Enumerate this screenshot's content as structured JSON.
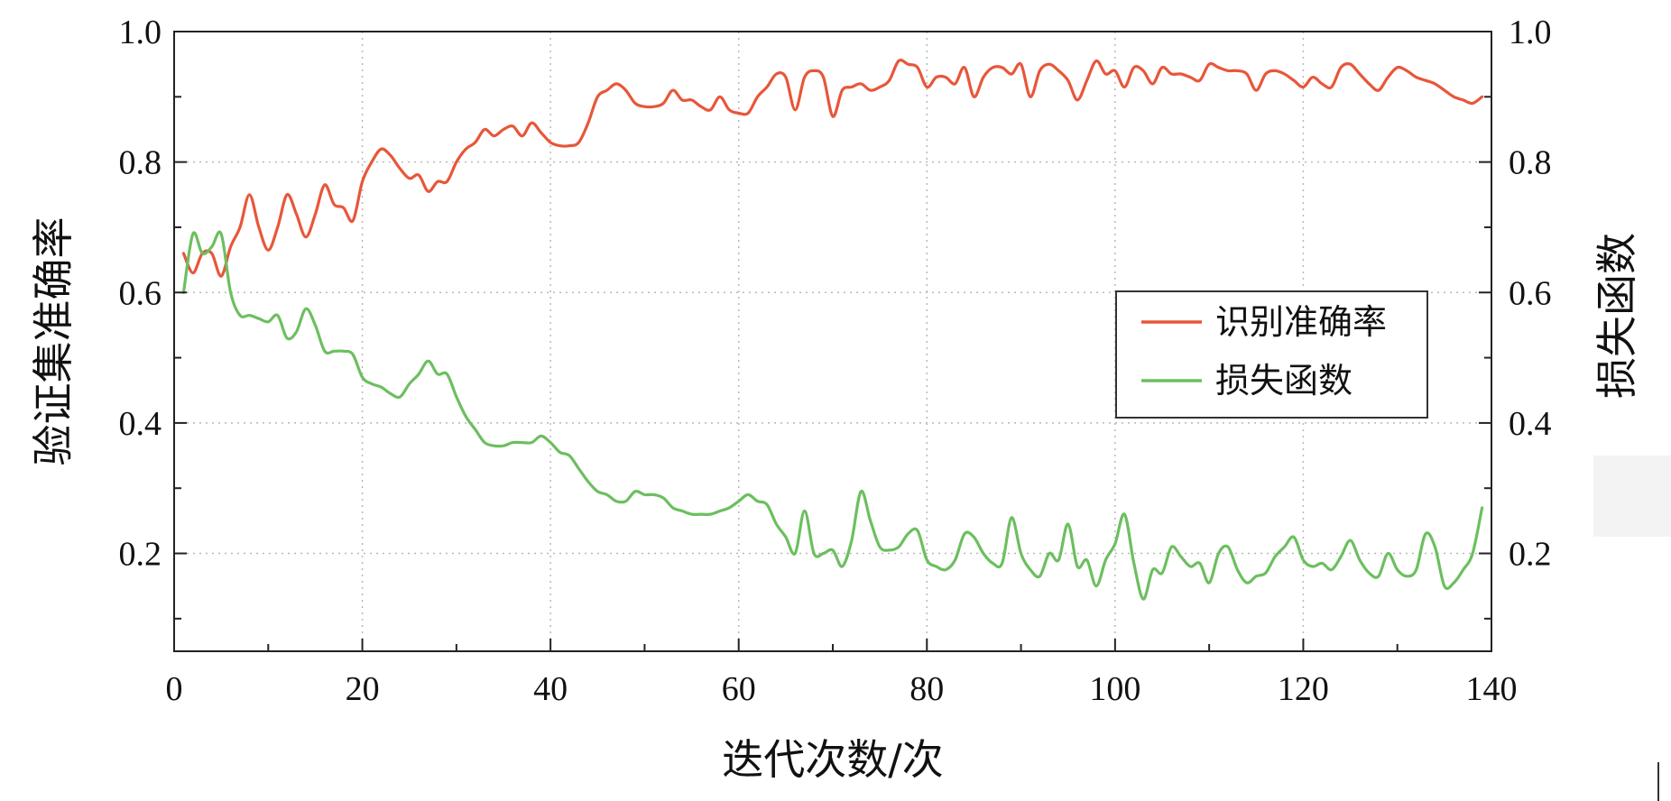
{
  "chart_data": {
    "type": "line",
    "title": "",
    "xlabel": "迭代次数/次",
    "ylabel_left": "验证集准确率",
    "ylabel_right": "损失函数",
    "xlim": [
      0,
      140
    ],
    "ylim": [
      0.05,
      1.0
    ],
    "grid": true,
    "legend_position": "center-right",
    "x_ticks": [
      "0",
      "20",
      "40",
      "60",
      "80",
      "100",
      "120",
      "140"
    ],
    "y_ticks_left": [
      "0.2",
      "0.4",
      "0.6",
      "0.8",
      "1.0"
    ],
    "y_ticks_right": [
      "0.2",
      "0.4",
      "0.6",
      "0.8",
      "1.0"
    ],
    "x": [
      1,
      2,
      3,
      4,
      5,
      6,
      7,
      8,
      9,
      10,
      11,
      12,
      13,
      14,
      15,
      16,
      17,
      18,
      19,
      20,
      21,
      22,
      23,
      24,
      25,
      26,
      27,
      28,
      29,
      30,
      31,
      32,
      33,
      34,
      35,
      36,
      37,
      38,
      39,
      40,
      41,
      42,
      43,
      44,
      45,
      46,
      47,
      48,
      49,
      50,
      51,
      52,
      53,
      54,
      55,
      56,
      57,
      58,
      59,
      60,
      61,
      62,
      63,
      64,
      65,
      66,
      67,
      68,
      69,
      70,
      71,
      72,
      73,
      74,
      75,
      76,
      77,
      78,
      79,
      80,
      81,
      82,
      83,
      84,
      85,
      86,
      87,
      88,
      89,
      90,
      91,
      92,
      93,
      94,
      95,
      96,
      97,
      98,
      99,
      100,
      101,
      102,
      103,
      104,
      105,
      106,
      107,
      108,
      109,
      110,
      111,
      112,
      113,
      114,
      115,
      116,
      117,
      118,
      119,
      120,
      121,
      122,
      123,
      124,
      125,
      126,
      127,
      128,
      129,
      130,
      131,
      132,
      133,
      134,
      135,
      136,
      137,
      138,
      139
    ],
    "series": [
      {
        "name": "识别准确率",
        "color": "#e8563a",
        "axis": "left",
        "values": [
          0.66,
          0.63,
          0.66,
          0.66,
          0.625,
          0.67,
          0.7,
          0.75,
          0.7,
          0.665,
          0.7,
          0.75,
          0.72,
          0.685,
          0.72,
          0.765,
          0.735,
          0.73,
          0.71,
          0.77,
          0.8,
          0.82,
          0.81,
          0.79,
          0.775,
          0.78,
          0.755,
          0.77,
          0.77,
          0.8,
          0.82,
          0.83,
          0.85,
          0.84,
          0.85,
          0.855,
          0.84,
          0.86,
          0.845,
          0.83,
          0.825,
          0.825,
          0.83,
          0.86,
          0.9,
          0.91,
          0.92,
          0.91,
          0.89,
          0.885,
          0.885,
          0.89,
          0.91,
          0.895,
          0.895,
          0.885,
          0.88,
          0.9,
          0.88,
          0.875,
          0.875,
          0.9,
          0.915,
          0.935,
          0.93,
          0.88,
          0.93,
          0.94,
          0.93,
          0.87,
          0.91,
          0.915,
          0.92,
          0.91,
          0.915,
          0.925,
          0.955,
          0.95,
          0.945,
          0.915,
          0.93,
          0.93,
          0.92,
          0.945,
          0.9,
          0.93,
          0.945,
          0.945,
          0.935,
          0.95,
          0.9,
          0.94,
          0.95,
          0.94,
          0.925,
          0.895,
          0.925,
          0.955,
          0.935,
          0.94,
          0.915,
          0.945,
          0.94,
          0.92,
          0.945,
          0.935,
          0.935,
          0.93,
          0.925,
          0.95,
          0.945,
          0.94,
          0.94,
          0.935,
          0.91,
          0.935,
          0.94,
          0.935,
          0.925,
          0.915,
          0.93,
          0.92,
          0.915,
          0.945,
          0.95,
          0.935,
          0.92,
          0.91,
          0.93,
          0.945,
          0.94,
          0.93,
          0.925,
          0.92,
          0.91,
          0.9,
          0.895,
          0.89,
          0.9
        ]
      },
      {
        "name": "损失函数",
        "color": "#6cbf5f",
        "axis": "right",
        "values": [
          0.6,
          0.69,
          0.66,
          0.67,
          0.69,
          0.6,
          0.565,
          0.565,
          0.56,
          0.555,
          0.565,
          0.53,
          0.54,
          0.575,
          0.55,
          0.51,
          0.51,
          0.51,
          0.505,
          0.47,
          0.46,
          0.455,
          0.445,
          0.44,
          0.46,
          0.475,
          0.495,
          0.475,
          0.475,
          0.44,
          0.41,
          0.39,
          0.37,
          0.365,
          0.365,
          0.37,
          0.37,
          0.37,
          0.38,
          0.37,
          0.355,
          0.35,
          0.33,
          0.31,
          0.295,
          0.29,
          0.28,
          0.28,
          0.295,
          0.29,
          0.29,
          0.285,
          0.27,
          0.265,
          0.26,
          0.26,
          0.26,
          0.265,
          0.27,
          0.28,
          0.29,
          0.28,
          0.275,
          0.245,
          0.225,
          0.2,
          0.265,
          0.2,
          0.2,
          0.205,
          0.18,
          0.22,
          0.295,
          0.25,
          0.21,
          0.205,
          0.21,
          0.23,
          0.235,
          0.19,
          0.18,
          0.175,
          0.19,
          0.23,
          0.225,
          0.2,
          0.185,
          0.185,
          0.255,
          0.2,
          0.175,
          0.165,
          0.2,
          0.19,
          0.245,
          0.18,
          0.19,
          0.15,
          0.19,
          0.215,
          0.26,
          0.185,
          0.13,
          0.175,
          0.17,
          0.21,
          0.195,
          0.18,
          0.185,
          0.155,
          0.2,
          0.21,
          0.175,
          0.155,
          0.165,
          0.17,
          0.195,
          0.21,
          0.225,
          0.19,
          0.18,
          0.185,
          0.175,
          0.195,
          0.22,
          0.19,
          0.17,
          0.165,
          0.2,
          0.175,
          0.165,
          0.175,
          0.23,
          0.21,
          0.15,
          0.155,
          0.175,
          0.2,
          0.27
        ]
      }
    ]
  }
}
